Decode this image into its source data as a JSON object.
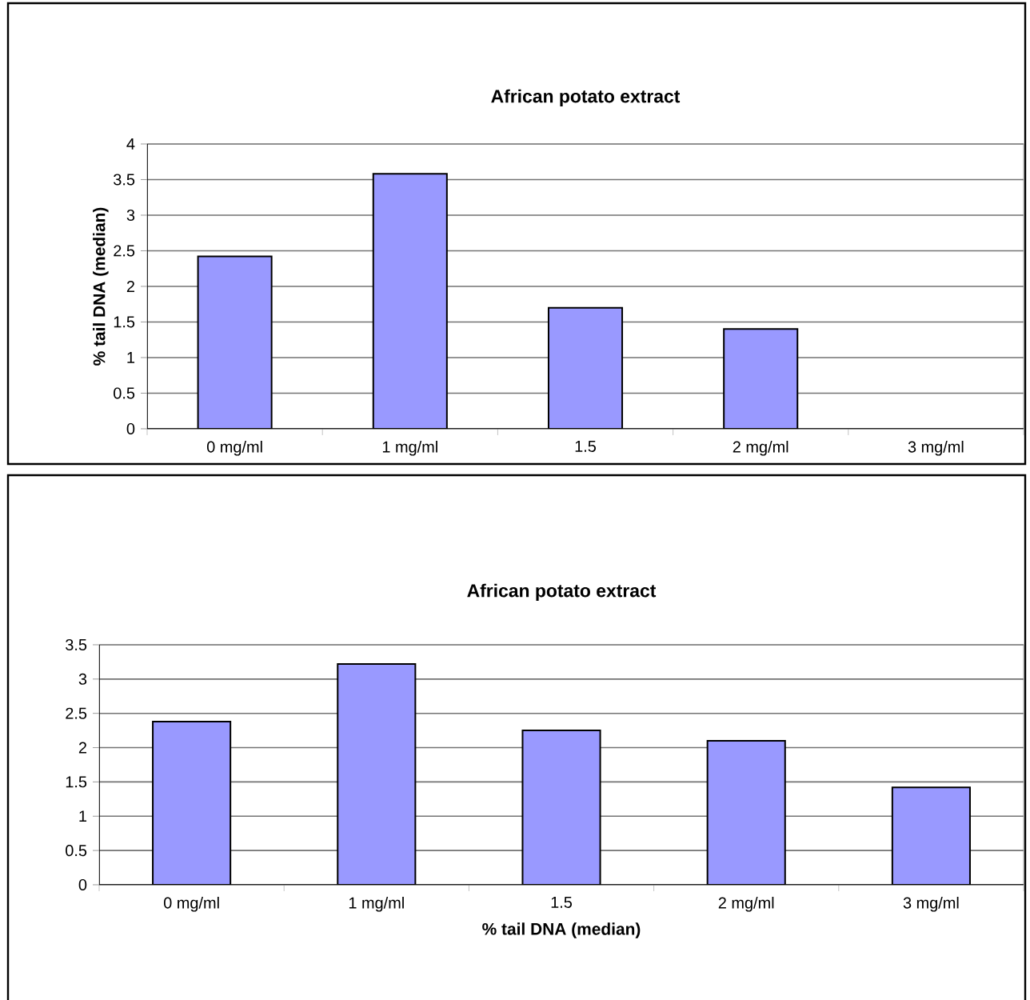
{
  "chart_data": [
    {
      "type": "bar",
      "title": "African potato extract",
      "ylabel": "% tail DNA (median)",
      "categories": [
        "0 mg/ml",
        "1 mg/ml",
        "1.5",
        "2 mg/ml",
        "3 mg/ml"
      ],
      "values": [
        2.42,
        3.58,
        1.7,
        1.4,
        null
      ],
      "color": "#9999ff",
      "ylim": [
        0,
        4
      ],
      "yticks": [
        0,
        0.5,
        1,
        1.5,
        2,
        2.5,
        3,
        3.5,
        4
      ],
      "grid": "y"
    },
    {
      "type": "bar",
      "title": "African potato extract",
      "xlabel": "% tail DNA (median)",
      "categories": [
        "0 mg/ml",
        "1 mg/ml",
        "1.5",
        "2 mg/ml",
        "3 mg/ml"
      ],
      "values": [
        2.38,
        3.22,
        2.25,
        2.1,
        1.42
      ],
      "color": "#9999ff",
      "ylim": [
        0,
        3.5
      ],
      "yticks": [
        0,
        0.5,
        1,
        1.5,
        2,
        2.5,
        3,
        3.5
      ],
      "grid": "y"
    }
  ]
}
